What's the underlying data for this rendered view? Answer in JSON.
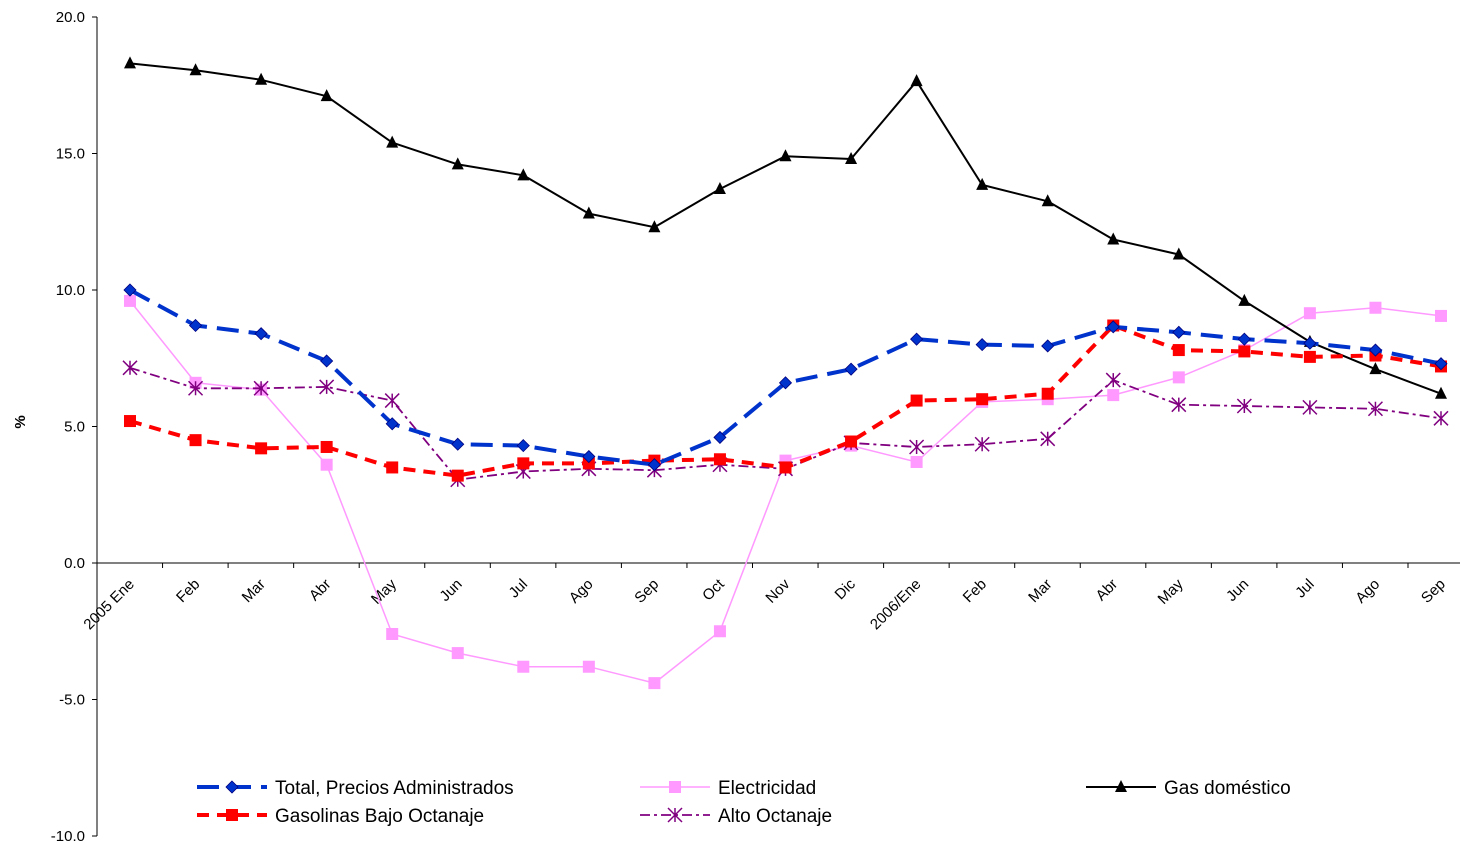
{
  "chart_data": {
    "type": "line",
    "title": "",
    "xlabel": "",
    "ylabel": "%",
    "ylim": [
      -10,
      20
    ],
    "y_ticks": [
      "20.0",
      "15.0",
      "10.0",
      "5.0",
      "0.0",
      "-5.0",
      "-10.0"
    ],
    "y_tick_values": [
      20,
      15,
      10,
      5,
      0,
      -5,
      -10
    ],
    "grid": false,
    "legend_position": "bottom",
    "categories": [
      "2005 Ene",
      "Feb",
      "Mar",
      "Abr",
      "May",
      "Jun",
      "Jul",
      "Ago",
      "Sep",
      "Oct",
      "Nov",
      "Dic",
      "2006/Ene",
      "Feb",
      "Mar",
      "Abr",
      "May",
      "Jun",
      "Jul",
      "Ago",
      "Sep"
    ],
    "series": [
      {
        "name": "Total, Precios Administrados",
        "color": "#0033cc",
        "marker": "diamond",
        "values": [
          10.0,
          8.7,
          8.4,
          7.4,
          5.1,
          4.35,
          4.3,
          3.9,
          3.6,
          4.6,
          6.6,
          7.1,
          8.2,
          8.0,
          7.95,
          8.65,
          8.45,
          8.2,
          8.05,
          7.8,
          7.3
        ]
      },
      {
        "name": "Electricidad",
        "color": "#ff99ff",
        "marker": "square",
        "values": [
          9.6,
          6.6,
          6.35,
          3.6,
          -2.6,
          -3.3,
          -3.8,
          -3.8,
          -4.4,
          -2.5,
          3.75,
          4.3,
          3.7,
          5.9,
          6.0,
          6.15,
          6.8,
          7.8,
          9.15,
          9.35,
          9.05
        ]
      },
      {
        "name": "Gas doméstico",
        "color": "#000000",
        "marker": "triangle",
        "values": [
          18.3,
          18.05,
          17.7,
          17.1,
          15.4,
          14.6,
          14.2,
          12.8,
          12.3,
          13.7,
          14.9,
          14.8,
          17.65,
          13.85,
          13.25,
          11.85,
          11.3,
          9.6,
          8.1,
          7.1,
          6.2
        ]
      },
      {
        "name": "Gasolinas Bajo Octanaje",
        "color": "#ff0000",
        "marker": "square",
        "values": [
          5.2,
          4.5,
          4.2,
          4.25,
          3.5,
          3.2,
          3.65,
          3.65,
          3.75,
          3.8,
          3.5,
          4.45,
          5.95,
          6.0,
          6.2,
          8.7,
          7.8,
          7.75,
          7.55,
          7.6,
          7.2
        ]
      },
      {
        "name": "Alto Octanaje",
        "color": "#800080",
        "marker": "asterisk",
        "values": [
          7.15,
          6.4,
          6.4,
          6.45,
          5.95,
          3.05,
          3.35,
          3.45,
          3.4,
          3.6,
          3.45,
          4.4,
          4.25,
          4.35,
          4.55,
          6.7,
          5.8,
          5.75,
          5.7,
          5.65,
          5.3
        ]
      }
    ]
  }
}
